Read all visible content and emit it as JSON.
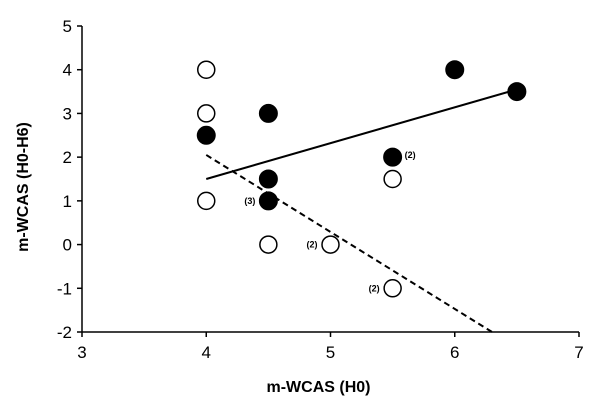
{
  "chart_data": {
    "type": "scatter",
    "title": "",
    "xlabel": "m-WCAS (H0)",
    "ylabel": "m-WCAS (H0-H6)",
    "xlim": [
      3,
      7
    ],
    "ylim": [
      -2,
      5
    ],
    "x_ticks": [
      3,
      4,
      5,
      6,
      7
    ],
    "y_ticks": [
      -2,
      -1,
      0,
      1,
      2,
      3,
      4,
      5
    ],
    "grid": false,
    "legend": "none",
    "series": [
      {
        "marker": "filled-circle",
        "color": "#000000",
        "points": [
          {
            "x": 4.0,
            "y": 2.5,
            "label": ""
          },
          {
            "x": 4.5,
            "y": 3.0,
            "label": ""
          },
          {
            "x": 4.5,
            "y": 1.5,
            "label": ""
          },
          {
            "x": 4.5,
            "y": 1.0,
            "label": "(3)"
          },
          {
            "x": 5.5,
            "y": 2.0,
            "label": "(2)"
          },
          {
            "x": 6.0,
            "y": 4.0,
            "label": ""
          },
          {
            "x": 6.5,
            "y": 3.5,
            "label": ""
          }
        ],
        "trend_line": {
          "style": "solid",
          "x": [
            4.0,
            6.5
          ],
          "y": [
            1.5,
            3.55
          ]
        }
      },
      {
        "marker": "open-circle",
        "color": "#000000",
        "points": [
          {
            "x": 4.0,
            "y": 4.0,
            "label": ""
          },
          {
            "x": 4.0,
            "y": 3.0,
            "label": ""
          },
          {
            "x": 4.0,
            "y": 1.0,
            "label": ""
          },
          {
            "x": 4.5,
            "y": 0.0,
            "label": ""
          },
          {
            "x": 5.0,
            "y": 0.0,
            "label": "(2)"
          },
          {
            "x": 5.5,
            "y": 1.5,
            "label": ""
          },
          {
            "x": 5.5,
            "y": -1.0,
            "label": "(2)"
          }
        ],
        "trend_line": {
          "style": "dashed",
          "x": [
            4.0,
            6.3
          ],
          "y": [
            2.05,
            -2.0
          ]
        }
      }
    ]
  }
}
